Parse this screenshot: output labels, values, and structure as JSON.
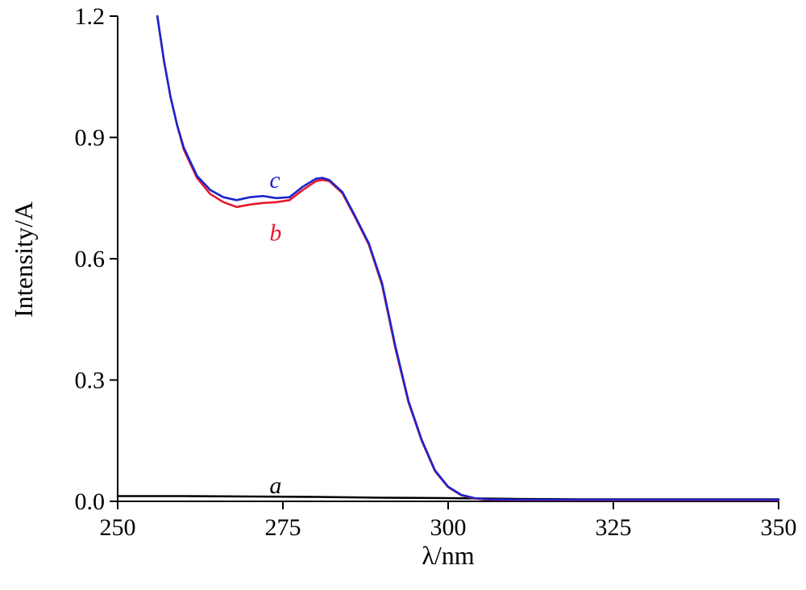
{
  "chart_data": {
    "type": "line",
    "xlabel": "λ/nm",
    "ylabel": "Intensity/A",
    "xlim": [
      250,
      350
    ],
    "ylim": [
      0,
      1.2
    ],
    "x_ticks": [
      "250",
      "275",
      "300",
      "325",
      "350"
    ],
    "y_ticks": [
      "0.0",
      "0.3",
      "0.6",
      "0.9",
      "1.2"
    ],
    "grid": false,
    "series": [
      {
        "name": "a",
        "color": "#000000",
        "label_at": [
          272,
          0.04
        ],
        "points": [
          [
            250,
            0.013
          ],
          [
            260,
            0.013
          ],
          [
            270,
            0.012
          ],
          [
            280,
            0.011
          ],
          [
            290,
            0.009
          ],
          [
            300,
            0.008
          ],
          [
            310,
            0.006
          ],
          [
            320,
            0.005
          ],
          [
            330,
            0.005
          ],
          [
            340,
            0.005
          ],
          [
            350,
            0.005
          ]
        ]
      },
      {
        "name": "b",
        "color": "#e8192c",
        "label_at": [
          272,
          0.665
        ],
        "points": [
          [
            256,
            1.2
          ],
          [
            257,
            1.09
          ],
          [
            258,
            1.0
          ],
          [
            259,
            0.93
          ],
          [
            260,
            0.87
          ],
          [
            262,
            0.8
          ],
          [
            264,
            0.76
          ],
          [
            266,
            0.74
          ],
          [
            268,
            0.728
          ],
          [
            270,
            0.734
          ],
          [
            272,
            0.738
          ],
          [
            274,
            0.74
          ],
          [
            276,
            0.745
          ],
          [
            278,
            0.77
          ],
          [
            280,
            0.792
          ],
          [
            281,
            0.795
          ],
          [
            282,
            0.792
          ],
          [
            284,
            0.762
          ],
          [
            286,
            0.7
          ],
          [
            288,
            0.635
          ],
          [
            290,
            0.535
          ],
          [
            292,
            0.38
          ],
          [
            294,
            0.245
          ],
          [
            296,
            0.15
          ],
          [
            298,
            0.075
          ],
          [
            300,
            0.035
          ],
          [
            302,
            0.015
          ],
          [
            304,
            0.007
          ],
          [
            306,
            0.004
          ],
          [
            310,
            0.003
          ],
          [
            320,
            0.003
          ],
          [
            330,
            0.003
          ],
          [
            340,
            0.003
          ],
          [
            350,
            0.003
          ]
        ]
      },
      {
        "name": "c",
        "color": "#1b25ce",
        "label_at": [
          272,
          0.795
        ],
        "points": [
          [
            256,
            1.2
          ],
          [
            257,
            1.09
          ],
          [
            258,
            1.0
          ],
          [
            259,
            0.93
          ],
          [
            260,
            0.875
          ],
          [
            262,
            0.805
          ],
          [
            264,
            0.77
          ],
          [
            266,
            0.752
          ],
          [
            268,
            0.745
          ],
          [
            270,
            0.752
          ],
          [
            272,
            0.755
          ],
          [
            274,
            0.75
          ],
          [
            276,
            0.752
          ],
          [
            278,
            0.778
          ],
          [
            280,
            0.798
          ],
          [
            281,
            0.8
          ],
          [
            282,
            0.795
          ],
          [
            284,
            0.765
          ],
          [
            286,
            0.703
          ],
          [
            288,
            0.638
          ],
          [
            290,
            0.54
          ],
          [
            292,
            0.385
          ],
          [
            294,
            0.248
          ],
          [
            296,
            0.152
          ],
          [
            298,
            0.077
          ],
          [
            300,
            0.036
          ],
          [
            302,
            0.016
          ],
          [
            304,
            0.008
          ],
          [
            306,
            0.005
          ],
          [
            310,
            0.004
          ],
          [
            320,
            0.004
          ],
          [
            330,
            0.004
          ],
          [
            340,
            0.004
          ],
          [
            350,
            0.004
          ]
        ]
      }
    ]
  }
}
